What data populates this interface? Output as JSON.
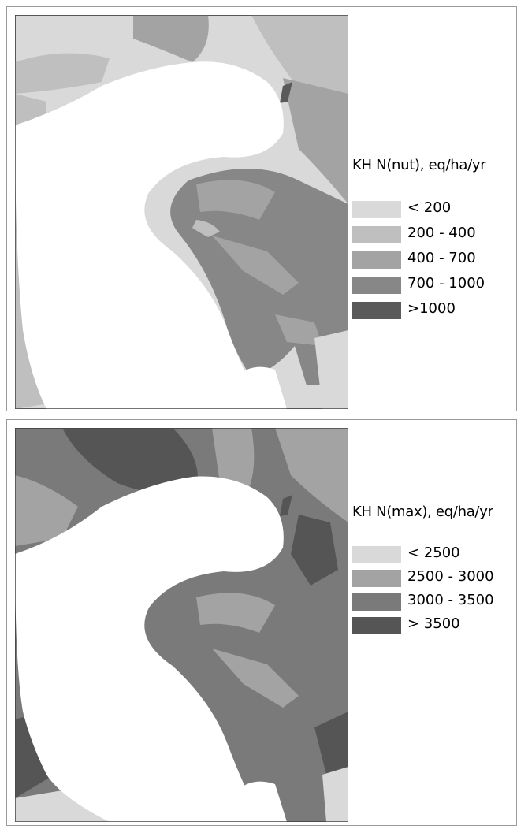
{
  "maps": [
    {
      "legend": {
        "title": "KH N(nut), eq/ha/yr",
        "items": [
          {
            "label": "< 200",
            "color": "#d9d9d9"
          },
          {
            "label": "200 - 400",
            "color": "#bfbfbf"
          },
          {
            "label": "400 - 700",
            "color": "#a3a3a3"
          },
          {
            "label": "700 - 1000",
            "color": "#878787"
          },
          {
            "label": ">1000",
            "color": "#5a5a5a"
          }
        ]
      }
    },
    {
      "legend": {
        "title": "KH N(max), eq/ha/yr",
        "items": [
          {
            "label": "< 2500",
            "color": "#d9d9d9"
          },
          {
            "label": "2500 - 3000",
            "color": "#a3a3a3"
          },
          {
            "label": "3000 - 3500",
            "color": "#7a7a7a"
          },
          {
            "label": "> 3500",
            "color": "#555555"
          }
        ]
      }
    }
  ]
}
